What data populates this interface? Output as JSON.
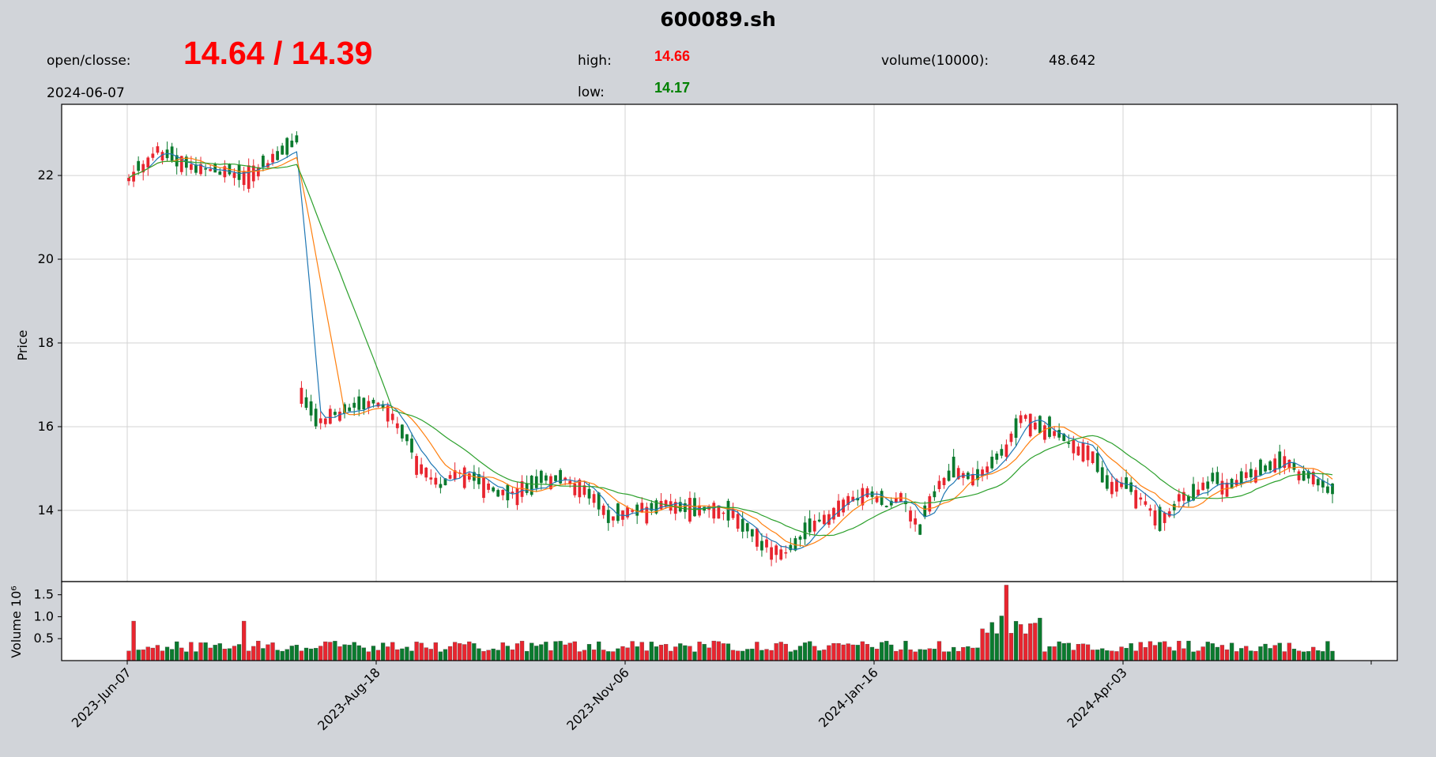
{
  "header": {
    "title": "600089.sh",
    "open_close_label": "open/closse:",
    "open_close_value": "14.64 / 14.39",
    "date": "2024-06-07",
    "high_label": "high:",
    "high_value": "14.66",
    "low_label": "low:",
    "low_value": "14.17",
    "volume_label": "volume(10000):",
    "volume_value": "48.642"
  },
  "colors": {
    "up": "#e8252f",
    "down": "#0a7a2e",
    "ma_short": "#1f77b4",
    "ma_mid": "#ff7f0e",
    "ma_long": "#2ca02c",
    "grid": "#d3d3d3",
    "background": "#d1d4d9"
  },
  "chart_data": [
    {
      "type": "candlestick",
      "ylabel": "Price",
      "ylim": [
        12.3,
        23.7
      ],
      "yticks": [
        14,
        16,
        18,
        20,
        22
      ],
      "x_tick_labels": [
        "2023-Jun-07",
        "2023-Aug-18",
        "2023-Nov-06",
        "2024-Jan-16",
        "2024-Apr-03"
      ],
      "grid": true,
      "moving_averages": [
        "short",
        "mid",
        "long"
      ],
      "series_keypoints": [
        {
          "segment": "2023-Jun-07 to 2023-Jul-07",
          "price": [
            21.9,
            22.6,
            22.3,
            22.1,
            22.0,
            22.3,
            22.9
          ]
        },
        {
          "segment": "2023-Jul-10 gap",
          "price": [
            16.7,
            16.1,
            16.3,
            16.5,
            16.6,
            16.4
          ]
        },
        {
          "segment": "2023-Aug",
          "price": [
            15.8,
            15.0,
            14.6,
            14.9,
            14.8,
            14.5,
            14.4,
            14.5
          ]
        },
        {
          "segment": "2023-Sep/Oct",
          "price": [
            14.7,
            14.8,
            14.6,
            14.3,
            13.8,
            14.0,
            14.0,
            14.1
          ]
        },
        {
          "segment": "2023-Nov/Dec",
          "price": [
            14.1,
            14.1,
            14.0,
            13.9,
            13.5,
            13.2,
            12.9,
            13.3,
            13.7
          ]
        },
        {
          "segment": "2024-Jan/Feb",
          "price": [
            14.0,
            14.2,
            14.4,
            14.1,
            14.3,
            13.6,
            14.6,
            14.9,
            14.8,
            15.0
          ]
        },
        {
          "segment": "2024-Mar",
          "price": [
            15.5,
            16.3,
            16.0,
            15.8,
            15.5,
            15.4
          ]
        },
        {
          "segment": "2024-Apr/May",
          "price": [
            14.5,
            14.6,
            14.2,
            13.7,
            14.2,
            14.4,
            14.7,
            14.6
          ]
        },
        {
          "segment": "2024-May/Jun",
          "price": [
            14.8,
            15.0,
            15.2,
            14.9,
            14.7,
            14.39
          ]
        }
      ]
    },
    {
      "type": "bar",
      "ylabel": "Volume  10⁶",
      "ylim": [
        0,
        1.8
      ],
      "yticks": [
        0.5,
        1.0,
        1.5
      ],
      "ytick_labels": [
        "0.5",
        "1.0",
        "1.5"
      ],
      "peak_value": 1.72,
      "typical_range": [
        0.2,
        0.6
      ]
    }
  ]
}
